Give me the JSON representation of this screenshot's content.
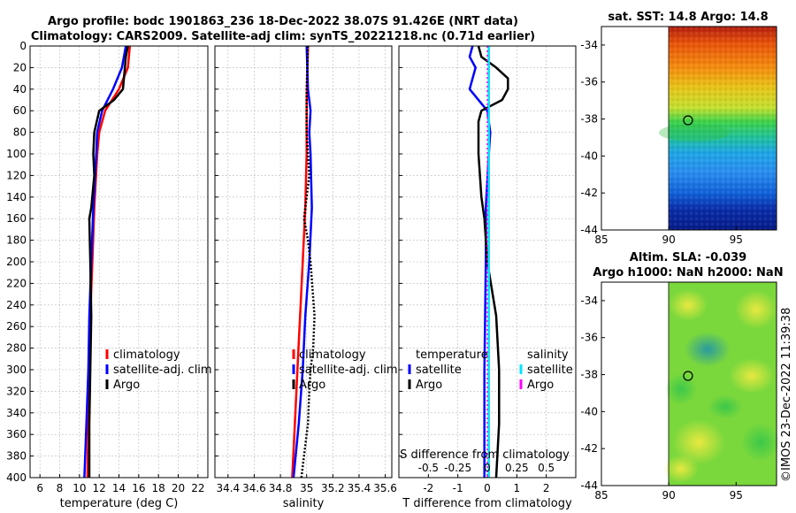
{
  "header": {
    "line1": "Argo profile: bodc 1901863_236 18-Dec-2022 38.07S 91.426E (NRT data)",
    "line2": "Climatology: CARS2009. Satellite-adj clim: synTS_20221218.nc (0.71d earlier)"
  },
  "depth_ticks": [
    "0",
    "20",
    "40",
    "60",
    "80",
    "100",
    "120",
    "140",
    "160",
    "180",
    "200",
    "220",
    "240",
    "260",
    "280",
    "300",
    "320",
    "340",
    "360",
    "380",
    "400"
  ],
  "colors": {
    "climatology": "#ff0000",
    "satellite": "#0000ff",
    "argo": "#000000",
    "cyan": "#00e5ff",
    "magenta": "#ff00ff"
  },
  "chart_data": [
    {
      "type": "line",
      "xlabel": "temperature (deg C)",
      "ylabel": "",
      "xlim": [
        5,
        23
      ],
      "ylim": [
        0,
        400
      ],
      "xticks": [
        6,
        8,
        10,
        12,
        14,
        16,
        18,
        20,
        22
      ],
      "xtick_labels": [
        "6",
        "8",
        "10",
        "12",
        "14",
        "16",
        "18",
        "20",
        "22"
      ],
      "legend": [
        "climatology",
        "satellite-adj. clim",
        "Argo"
      ],
      "series": [
        {
          "name": "climatology",
          "color": "#ff0000",
          "depth": [
            0,
            20,
            40,
            60,
            80,
            100,
            150,
            200,
            250,
            300,
            350,
            400
          ],
          "values": [
            15.1,
            14.9,
            14.0,
            12.6,
            12.0,
            11.8,
            11.5,
            11.3,
            11.1,
            11.0,
            10.9,
            10.8
          ]
        },
        {
          "name": "satellite-adj. clim",
          "color": "#0000ff",
          "depth": [
            0,
            20,
            40,
            60,
            80,
            100,
            150,
            200,
            250,
            300,
            350,
            400
          ],
          "values": [
            14.7,
            14.3,
            13.4,
            12.3,
            11.8,
            11.7,
            11.4,
            11.2,
            11.0,
            10.9,
            10.7,
            10.5
          ]
        },
        {
          "name": "Argo",
          "color": "#000000",
          "depth": [
            0,
            10,
            20,
            40,
            50,
            60,
            80,
            100,
            120,
            150,
            160,
            200,
            250,
            300,
            350,
            400
          ],
          "values": [
            14.9,
            14.7,
            14.6,
            14.4,
            13.5,
            12.0,
            11.5,
            11.4,
            11.5,
            11.2,
            11.0,
            11.1,
            11.2,
            11.1,
            11.0,
            11.0
          ]
        }
      ]
    },
    {
      "type": "line",
      "xlabel": "salinity",
      "ylabel": "",
      "xlim": [
        34.3,
        35.65
      ],
      "ylim": [
        0,
        400
      ],
      "xticks": [
        34.4,
        34.6,
        34.8,
        35.0,
        35.2,
        35.4,
        35.6
      ],
      "xtick_labels": [
        "34.4",
        "34.6",
        "34.8",
        "35",
        "35.2",
        "35.4",
        "35.6"
      ],
      "legend": [
        "climatology",
        "satellite-adj. clim",
        "Argo"
      ],
      "series": [
        {
          "name": "climatology",
          "color": "#ff0000",
          "depth": [
            0,
            50,
            100,
            150,
            200,
            250,
            300,
            350,
            400
          ],
          "values": [
            35.01,
            35.0,
            35.0,
            34.99,
            34.97,
            34.95,
            34.93,
            34.91,
            34.89
          ]
        },
        {
          "name": "satellite-adj. clim",
          "color": "#0000ff",
          "depth": [
            0,
            40,
            60,
            80,
            100,
            150,
            200,
            250,
            300,
            350,
            400
          ],
          "values": [
            35.0,
            35.01,
            35.03,
            35.02,
            35.03,
            35.04,
            35.02,
            34.99,
            34.97,
            34.94,
            34.9
          ]
        },
        {
          "name": "Argo",
          "color": "#000000",
          "depth": [
            0,
            40,
            80,
            100,
            120,
            150,
            160,
            180,
            200,
            250,
            280,
            300,
            320,
            350,
            380,
            400
          ],
          "values": [
            35.01,
            35.0,
            35.0,
            35.01,
            35.02,
            34.99,
            34.98,
            35.01,
            35.03,
            35.06,
            35.05,
            35.03,
            35.02,
            35.01,
            34.98,
            34.96
          ]
        }
      ]
    },
    {
      "type": "line",
      "xlabel": "T difference from climatology",
      "ylabel": "",
      "xlim": [
        -3,
        3
      ],
      "ylim": [
        0,
        400
      ],
      "xticks": [
        -2,
        -1,
        0,
        1,
        2
      ],
      "xtick_labels": [
        "-2",
        "-1",
        "0",
        "1",
        "2"
      ],
      "top_axis_label": "S difference from climatology",
      "top_axis_ticks": [
        "-0.5",
        "-0.25",
        "0",
        "0.25",
        "0.5"
      ],
      "top_axis_values": [
        -0.5,
        -0.25,
        0,
        0.25,
        0.5
      ],
      "legend_left_title": "temperature",
      "legend_right_title": "salinity",
      "legend_left": [
        "satellite",
        "Argo"
      ],
      "legend_right": [
        "satellite",
        "Argo"
      ],
      "series": [
        {
          "name": "temperature satellite",
          "color": "#0000ff",
          "depth": [
            0,
            10,
            20,
            40,
            60,
            80,
            100,
            150,
            200,
            300,
            400
          ],
          "values": [
            -0.5,
            -0.6,
            -0.4,
            -0.6,
            0.0,
            0.1,
            0.05,
            -0.05,
            -0.05,
            -0.1,
            -0.1
          ]
        },
        {
          "name": "temperature Argo",
          "color": "#000000",
          "depth": [
            0,
            10,
            20,
            30,
            40,
            50,
            60,
            70,
            80,
            100,
            140,
            160,
            200,
            250,
            300,
            350,
            400
          ],
          "values": [
            -0.3,
            -0.2,
            0.3,
            0.7,
            0.7,
            0.5,
            -0.2,
            -0.3,
            -0.3,
            -0.3,
            -0.2,
            -0.1,
            0.0,
            0.3,
            0.4,
            0.4,
            0.3
          ]
        },
        {
          "name": "salinity satellite",
          "color": "#00e5ff",
          "depth": [
            0,
            400
          ],
          "values": [
            0.05,
            0.05
          ]
        },
        {
          "name": "salinity Argo",
          "color": "#ff00ff",
          "depth": [
            0,
            400
          ],
          "values": [
            0.0,
            0.0
          ]
        }
      ]
    },
    {
      "type": "heatmap",
      "title": "sat. SST: 14.8 Argo: 14.8",
      "xlim": [
        85,
        98
      ],
      "ylim": [
        -44,
        -33
      ],
      "xticks": [
        "85",
        "90",
        "95"
      ],
      "yticks": [
        "-34",
        "-36",
        "-38",
        "-40",
        "-42",
        "-44"
      ],
      "marker": [
        91.43,
        -38.07
      ]
    },
    {
      "type": "heatmap",
      "title": "Altim. SLA: -0.039",
      "subtitle": "Argo h1000: NaN h2000: NaN",
      "xlim": [
        85,
        98
      ],
      "ylim": [
        -44,
        -33
      ],
      "xticks": [
        "85",
        "90",
        "95"
      ],
      "yticks": [
        "-34",
        "-36",
        "-38",
        "-40",
        "-42",
        "-44"
      ],
      "marker": [
        91.43,
        -38.07
      ]
    }
  ],
  "timestamp": "©IMOS 23-Dec-2022 11:39:38"
}
